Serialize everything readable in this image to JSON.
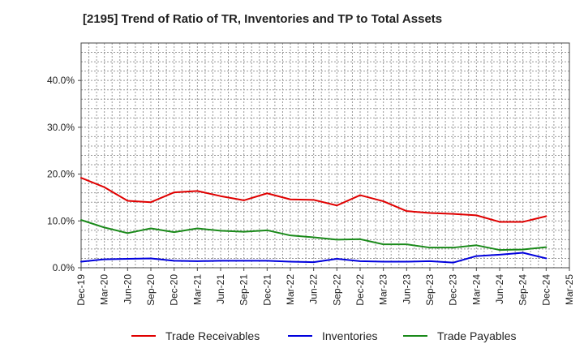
{
  "chart_data": {
    "type": "line",
    "title": "[2195]  Trend of Ratio of TR, Inventories and TP to Total Assets",
    "xlabel": "",
    "ylabel": "",
    "x_tick_labels": [
      "Dec-19",
      "Mar-20",
      "Jun-20",
      "Sep-20",
      "Dec-20",
      "Mar-21",
      "Jun-21",
      "Sep-21",
      "Dec-21",
      "Mar-22",
      "Jun-22",
      "Sep-22",
      "Dec-22",
      "Mar-23",
      "Jun-23",
      "Sep-23",
      "Dec-23",
      "Mar-24",
      "Jun-24",
      "Sep-24",
      "Dec-24",
      "Mar-25"
    ],
    "y_ticks": [
      0,
      10,
      20,
      30,
      40
    ],
    "y_tick_labels": [
      "0.0%",
      "10.0%",
      "20.0%",
      "30.0%",
      "40.0%"
    ],
    "ylim": [
      0,
      48
    ],
    "grid": true,
    "legend_position": "bottom",
    "categories": [
      "Dec-19",
      "Mar-20",
      "Jun-20",
      "Sep-20",
      "Dec-20",
      "Mar-21",
      "Jun-21",
      "Sep-21",
      "Dec-21",
      "Mar-22",
      "Jun-22",
      "Sep-22",
      "Dec-22",
      "Mar-23",
      "Jun-23",
      "Sep-23",
      "Dec-23",
      "Mar-24",
      "Jun-24",
      "Sep-24",
      "Dec-24"
    ],
    "series": [
      {
        "name": "Trade Receivables",
        "color": "#e00000",
        "values": [
          19.2,
          17.2,
          14.3,
          14.0,
          16.1,
          16.4,
          15.3,
          14.4,
          15.9,
          14.6,
          14.5,
          13.3,
          15.5,
          14.2,
          12.1,
          11.7,
          11.5,
          11.2,
          9.8,
          9.8,
          11.0
        ]
      },
      {
        "name": "Inventories",
        "color": "#0000dd",
        "values": [
          1.3,
          1.8,
          1.9,
          2.0,
          1.5,
          1.4,
          1.5,
          1.5,
          1.5,
          1.3,
          1.2,
          1.9,
          1.4,
          1.3,
          1.3,
          1.4,
          1.1,
          2.5,
          2.8,
          3.2,
          2.0
        ]
      },
      {
        "name": "Trade Payables",
        "color": "#1a8a1a",
        "values": [
          10.2,
          8.6,
          7.4,
          8.4,
          7.6,
          8.4,
          7.9,
          7.7,
          8.0,
          6.9,
          6.5,
          6.0,
          6.1,
          5.0,
          5.0,
          4.3,
          4.3,
          4.8,
          3.8,
          3.9,
          4.4
        ]
      }
    ]
  }
}
